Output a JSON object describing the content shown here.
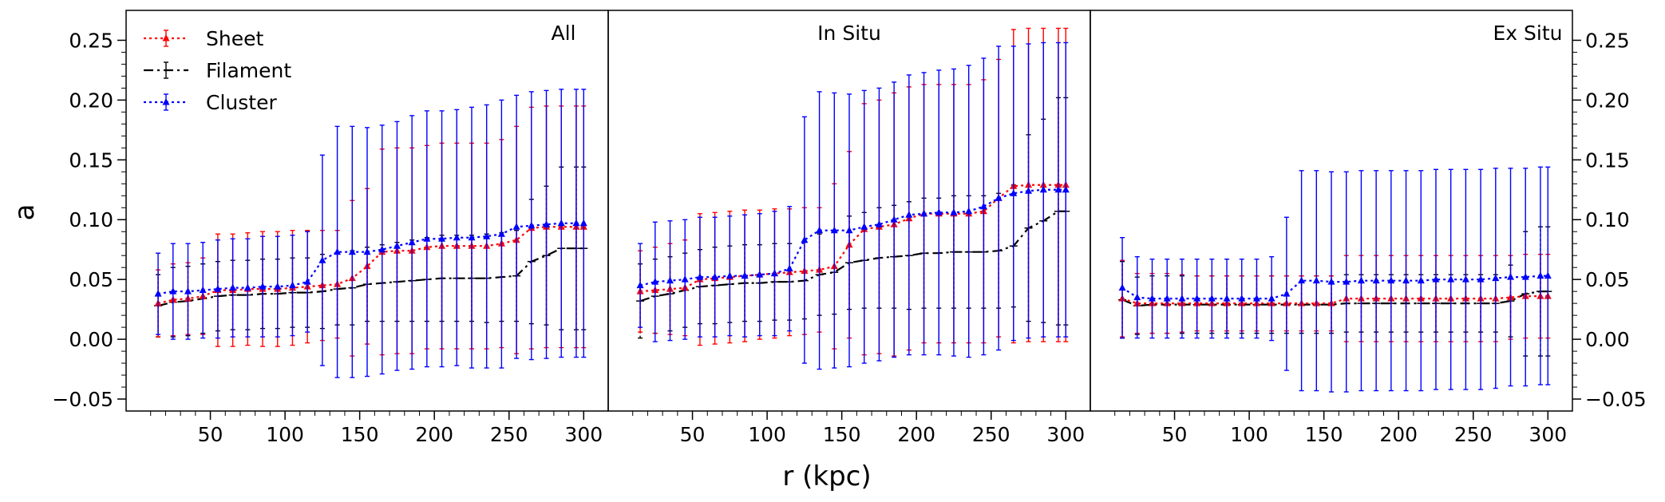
{
  "figure": {
    "xlabel": "r (kpc)",
    "ylabel": "a",
    "colors": {
      "Sheet": "#ff0000",
      "Filament": "#000000",
      "Cluster": "#0000ff"
    },
    "legend": {
      "placement": "top-left",
      "panel": 0
    }
  },
  "chart_data": [
    {
      "type": "line",
      "title": "All",
      "xlabel": "r (kpc)",
      "ylabel": "a",
      "xlim": [
        0,
        310
      ],
      "ylim": [
        -0.06,
        0.275
      ],
      "xticks": [
        50,
        100,
        150,
        200,
        250,
        300
      ],
      "xtick_labels": [
        "50",
        "100",
        "150",
        "200",
        "250",
        "300"
      ],
      "yticks": [
        -0.05,
        0.0,
        0.05,
        0.1,
        0.15,
        0.2,
        0.25
      ],
      "ytick_labels": [
        "−0.05",
        "0.00",
        "0.05",
        "0.10",
        "0.15",
        "0.20",
        "0.25"
      ],
      "x": [
        15,
        25,
        35,
        45,
        55,
        65,
        75,
        85,
        95,
        105,
        115,
        125,
        135,
        145,
        155,
        165,
        175,
        185,
        195,
        205,
        215,
        225,
        235,
        245,
        255,
        265,
        275,
        285,
        295,
        300
      ],
      "series": [
        {
          "name": "Sheet",
          "style": "dotted",
          "marker": "triangle",
          "values": [
            0.03,
            0.033,
            0.034,
            0.036,
            0.041,
            0.041,
            0.042,
            0.042,
            0.042,
            0.043,
            0.044,
            0.045,
            0.046,
            0.051,
            0.061,
            0.073,
            0.074,
            0.074,
            0.077,
            0.078,
            0.078,
            0.078,
            0.078,
            0.08,
            0.083,
            0.093,
            0.094,
            0.094,
            0.094,
            0.094
          ],
          "errors": [
            0.028,
            0.03,
            0.03,
            0.032,
            0.047,
            0.047,
            0.047,
            0.048,
            0.048,
            0.048,
            0.047,
            0.046,
            0.045,
            0.065,
            0.065,
            0.086,
            0.086,
            0.086,
            0.085,
            0.086,
            0.086,
            0.086,
            0.086,
            0.087,
            0.095,
            0.101,
            0.101,
            0.101,
            0.101,
            0.101
          ]
        },
        {
          "name": "Filament",
          "style": "dashdot",
          "marker": "none",
          "values": [
            0.028,
            0.031,
            0.032,
            0.034,
            0.036,
            0.037,
            0.037,
            0.038,
            0.038,
            0.039,
            0.039,
            0.04,
            0.042,
            0.043,
            0.046,
            0.047,
            0.048,
            0.049,
            0.05,
            0.051,
            0.051,
            0.051,
            0.051,
            0.052,
            0.053,
            0.065,
            0.07,
            0.076,
            0.076,
            0.076
          ],
          "errors": [
            0.026,
            0.029,
            0.029,
            0.029,
            0.029,
            0.029,
            0.029,
            0.029,
            0.029,
            0.029,
            0.029,
            0.031,
            0.03,
            0.031,
            0.031,
            0.032,
            0.033,
            0.034,
            0.035,
            0.036,
            0.036,
            0.036,
            0.037,
            0.037,
            0.038,
            0.052,
            0.058,
            0.068,
            0.068,
            0.068
          ]
        },
        {
          "name": "Cluster",
          "style": "dotted",
          "marker": "triangle",
          "values": [
            0.038,
            0.04,
            0.04,
            0.041,
            0.042,
            0.043,
            0.043,
            0.044,
            0.044,
            0.045,
            0.048,
            0.066,
            0.073,
            0.073,
            0.073,
            0.075,
            0.078,
            0.081,
            0.084,
            0.084,
            0.085,
            0.085,
            0.086,
            0.088,
            0.094,
            0.095,
            0.096,
            0.097,
            0.097,
            0.097
          ],
          "errors": [
            0.034,
            0.04,
            0.04,
            0.04,
            0.041,
            0.041,
            0.041,
            0.042,
            0.042,
            0.042,
            0.042,
            0.088,
            0.105,
            0.105,
            0.104,
            0.104,
            0.104,
            0.106,
            0.107,
            0.107,
            0.107,
            0.109,
            0.11,
            0.112,
            0.11,
            0.112,
            0.112,
            0.112,
            0.112,
            0.112
          ]
        }
      ]
    },
    {
      "type": "line",
      "title": "In Situ",
      "xlabel": "r (kpc)",
      "ylabel": "a",
      "xlim": [
        0,
        310
      ],
      "ylim": [
        -0.06,
        0.275
      ],
      "xticks": [
        50,
        100,
        150,
        200,
        250,
        300
      ],
      "xtick_labels": [
        "50",
        "100",
        "150",
        "200",
        "250",
        "300"
      ],
      "yticks": [
        -0.05,
        0.0,
        0.05,
        0.1,
        0.15,
        0.2,
        0.25
      ],
      "ytick_labels": [
        "−0.05",
        "0.00",
        "0.05",
        "0.10",
        "0.15",
        "0.20",
        "0.25"
      ],
      "x": [
        15,
        25,
        35,
        45,
        55,
        65,
        75,
        85,
        95,
        105,
        115,
        125,
        135,
        145,
        155,
        165,
        175,
        185,
        195,
        205,
        215,
        225,
        235,
        245,
        255,
        265,
        275,
        285,
        295,
        300
      ],
      "series": [
        {
          "name": "Sheet",
          "style": "dotted",
          "marker": "triangle",
          "values": [
            0.04,
            0.041,
            0.042,
            0.043,
            0.05,
            0.051,
            0.052,
            0.053,
            0.054,
            0.055,
            0.056,
            0.057,
            0.058,
            0.061,
            0.079,
            0.092,
            0.094,
            0.096,
            0.101,
            0.105,
            0.105,
            0.105,
            0.105,
            0.107,
            0.118,
            0.128,
            0.129,
            0.129,
            0.129,
            0.129
          ],
          "errors": [
            0.034,
            0.036,
            0.038,
            0.04,
            0.055,
            0.055,
            0.055,
            0.055,
            0.054,
            0.054,
            0.053,
            0.053,
            0.052,
            0.069,
            0.078,
            0.105,
            0.106,
            0.11,
            0.11,
            0.108,
            0.108,
            0.108,
            0.108,
            0.11,
            0.116,
            0.131,
            0.131,
            0.131,
            0.131,
            0.131
          ]
        },
        {
          "name": "Filament",
          "style": "dashdot",
          "marker": "none",
          "values": [
            0.032,
            0.036,
            0.038,
            0.041,
            0.044,
            0.045,
            0.046,
            0.047,
            0.047,
            0.048,
            0.048,
            0.049,
            0.054,
            0.056,
            0.064,
            0.066,
            0.068,
            0.069,
            0.07,
            0.072,
            0.072,
            0.073,
            0.073,
            0.073,
            0.074,
            0.078,
            0.093,
            0.099,
            0.107,
            0.107
          ],
          "errors": [
            0.031,
            0.031,
            0.031,
            0.031,
            0.031,
            0.032,
            0.032,
            0.032,
            0.032,
            0.032,
            0.032,
            0.032,
            0.034,
            0.035,
            0.039,
            0.04,
            0.042,
            0.043,
            0.045,
            0.046,
            0.046,
            0.047,
            0.047,
            0.047,
            0.048,
            0.051,
            0.078,
            0.085,
            0.095,
            0.095
          ]
        },
        {
          "name": "Cluster",
          "style": "dotted",
          "marker": "triangle",
          "values": [
            0.045,
            0.048,
            0.049,
            0.05,
            0.052,
            0.052,
            0.053,
            0.053,
            0.054,
            0.055,
            0.059,
            0.083,
            0.091,
            0.091,
            0.091,
            0.094,
            0.096,
            0.1,
            0.104,
            0.105,
            0.106,
            0.106,
            0.107,
            0.111,
            0.118,
            0.122,
            0.124,
            0.125,
            0.125,
            0.125
          ],
          "errors": [
            0.035,
            0.05,
            0.05,
            0.05,
            0.05,
            0.05,
            0.05,
            0.051,
            0.051,
            0.052,
            0.052,
            0.103,
            0.116,
            0.115,
            0.114,
            0.114,
            0.114,
            0.115,
            0.117,
            0.118,
            0.119,
            0.12,
            0.122,
            0.124,
            0.127,
            0.123,
            0.123,
            0.123,
            0.123,
            0.123
          ]
        }
      ]
    },
    {
      "type": "line",
      "title": "Ex Situ",
      "xlabel": "r (kpc)",
      "ylabel": "a",
      "xlim": [
        0,
        310
      ],
      "ylim": [
        -0.06,
        0.275
      ],
      "xticks": [
        50,
        100,
        150,
        200,
        250,
        300
      ],
      "xtick_labels": [
        "50",
        "100",
        "150",
        "200",
        "250",
        "300"
      ],
      "yticks": [
        -0.05,
        0.0,
        0.05,
        0.1,
        0.15,
        0.2,
        0.25
      ],
      "ytick_labels": [
        "−0.05",
        "0.00",
        "0.05",
        "0.10",
        "0.15",
        "0.20",
        "0.25"
      ],
      "x": [
        15,
        25,
        35,
        45,
        55,
        65,
        75,
        85,
        95,
        105,
        115,
        125,
        135,
        145,
        155,
        165,
        175,
        185,
        195,
        205,
        215,
        225,
        235,
        245,
        255,
        265,
        275,
        285,
        295,
        300
      ],
      "series": [
        {
          "name": "Sheet",
          "style": "dotted",
          "marker": "triangle",
          "values": [
            0.034,
            0.03,
            0.03,
            0.03,
            0.03,
            0.03,
            0.03,
            0.03,
            0.03,
            0.03,
            0.03,
            0.03,
            0.03,
            0.03,
            0.03,
            0.034,
            0.034,
            0.034,
            0.034,
            0.034,
            0.034,
            0.034,
            0.034,
            0.034,
            0.034,
            0.034,
            0.035,
            0.036,
            0.036,
            0.036
          ],
          "errors": [
            0.032,
            0.025,
            0.025,
            0.025,
            0.024,
            0.023,
            0.023,
            0.023,
            0.023,
            0.023,
            0.023,
            0.023,
            0.023,
            0.023,
            0.023,
            0.036,
            0.036,
            0.036,
            0.036,
            0.036,
            0.036,
            0.036,
            0.036,
            0.036,
            0.036,
            0.036,
            0.035,
            0.035,
            0.035,
            0.035
          ]
        },
        {
          "name": "Filament",
          "style": "dashdot",
          "marker": "none",
          "values": [
            0.033,
            0.028,
            0.029,
            0.029,
            0.029,
            0.029,
            0.029,
            0.029,
            0.029,
            0.029,
            0.029,
            0.029,
            0.029,
            0.029,
            0.029,
            0.03,
            0.03,
            0.03,
            0.03,
            0.03,
            0.03,
            0.03,
            0.03,
            0.03,
            0.03,
            0.03,
            0.032,
            0.038,
            0.04,
            0.04
          ],
          "errors": [
            0.032,
            0.024,
            0.024,
            0.024,
            0.024,
            0.024,
            0.024,
            0.024,
            0.024,
            0.024,
            0.024,
            0.024,
            0.024,
            0.024,
            0.024,
            0.024,
            0.024,
            0.024,
            0.024,
            0.024,
            0.024,
            0.024,
            0.024,
            0.024,
            0.024,
            0.024,
            0.03,
            0.052,
            0.054,
            0.054
          ]
        },
        {
          "name": "Cluster",
          "style": "dotted",
          "marker": "triangle",
          "values": [
            0.043,
            0.035,
            0.034,
            0.034,
            0.034,
            0.034,
            0.034,
            0.034,
            0.034,
            0.034,
            0.034,
            0.038,
            0.049,
            0.049,
            0.048,
            0.048,
            0.049,
            0.049,
            0.049,
            0.049,
            0.049,
            0.05,
            0.05,
            0.05,
            0.05,
            0.051,
            0.052,
            0.052,
            0.053,
            0.053
          ],
          "errors": [
            0.042,
            0.034,
            0.033,
            0.033,
            0.033,
            0.033,
            0.033,
            0.033,
            0.033,
            0.033,
            0.035,
            0.064,
            0.092,
            0.092,
            0.092,
            0.092,
            0.092,
            0.092,
            0.092,
            0.092,
            0.092,
            0.092,
            0.092,
            0.092,
            0.092,
            0.092,
            0.091,
            0.091,
            0.091,
            0.091
          ]
        }
      ]
    }
  ]
}
